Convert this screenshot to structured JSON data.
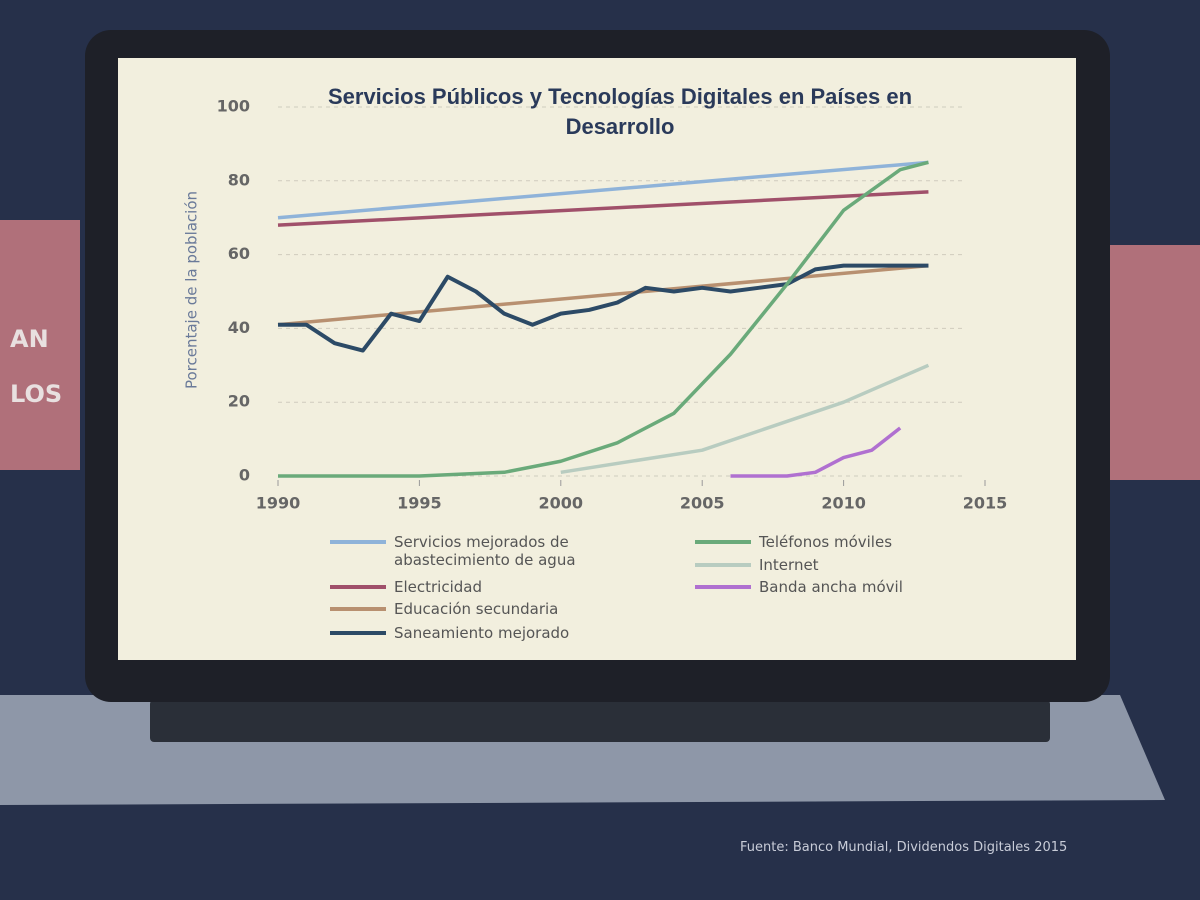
{
  "chart_data": {
    "type": "line",
    "title": "Servicios Públicos y Tecnologías Digitales en Países en Desarrollo",
    "y_label": "Porcentaje de la población",
    "xlim": [
      1990,
      2015
    ],
    "xticks": [
      1990,
      1995,
      2000,
      2005,
      2010,
      2015
    ],
    "ylim": [
      0,
      100
    ],
    "yticks": [
      0,
      20,
      40,
      60,
      80,
      100
    ],
    "grid": true,
    "series": [
      {
        "name": "Servicios mejorados de abastecimiento de agua",
        "color": "#8fb3d9",
        "x": [
          1990,
          2013
        ],
        "values": [
          70,
          85
        ]
      },
      {
        "name": "Electricidad",
        "color": "#a0506a",
        "x": [
          1990,
          2013
        ],
        "values": [
          68,
          77
        ]
      },
      {
        "name": "Educación secundaria",
        "color": "#b89070",
        "x": [
          1990,
          2013
        ],
        "values": [
          41,
          57
        ]
      },
      {
        "name": "Saneamiento mejorado",
        "color": "#2c4a66",
        "x": [
          1990,
          1991,
          1992,
          1993,
          1994,
          1995,
          1996,
          1997,
          1998,
          1999,
          2000,
          2001,
          2002,
          2003,
          2004,
          2005,
          2006,
          2007,
          2008,
          2009,
          2010,
          2011,
          2012,
          2013
        ],
        "values": [
          41,
          41,
          36,
          34,
          44,
          42,
          54,
          50,
          44,
          41,
          44,
          45,
          47,
          51,
          50,
          51,
          50,
          51,
          52,
          56,
          57,
          57,
          57,
          57
        ]
      },
      {
        "name": "Teléfonos móviles",
        "color": "#6aaa7a",
        "x": [
          1990,
          1995,
          1998,
          2000,
          2002,
          2004,
          2006,
          2008,
          2010,
          2012,
          2013
        ],
        "values": [
          0,
          0,
          1,
          4,
          9,
          17,
          33,
          52,
          72,
          83,
          85
        ]
      },
      {
        "name": "Internet",
        "color": "#b8ccc0",
        "x": [
          2000,
          2005,
          2010,
          2013
        ],
        "values": [
          1,
          7,
          20,
          30
        ]
      },
      {
        "name": "Banda ancha móvil",
        "color": "#b070d0",
        "x": [
          2006,
          2008,
          2009,
          2010,
          2011,
          2012
        ],
        "values": [
          0,
          0,
          1,
          5,
          7,
          13
        ]
      }
    ]
  },
  "side_text": [
    "AN",
    "LOS"
  ],
  "source": "Fuente: Banco Mundial, Dividendos Digitales 2015"
}
